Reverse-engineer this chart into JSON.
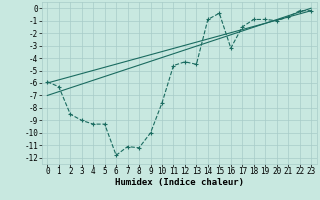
{
  "xlabel": "Humidex (Indice chaleur)",
  "bg_color": "#c8e8e0",
  "grid_color": "#a8ccc8",
  "line_color": "#1a6b60",
  "xlim": [
    -0.5,
    23.5
  ],
  "ylim": [
    -12.5,
    0.5
  ],
  "xticks": [
    0,
    1,
    2,
    3,
    4,
    5,
    6,
    7,
    8,
    9,
    10,
    11,
    12,
    13,
    14,
    15,
    16,
    17,
    18,
    19,
    20,
    21,
    22,
    23
  ],
  "yticks": [
    0,
    -1,
    -2,
    -3,
    -4,
    -5,
    -6,
    -7,
    -8,
    -9,
    -10,
    -11,
    -12
  ],
  "line1_x": [
    0,
    1,
    2,
    3,
    4,
    5,
    6,
    7,
    8,
    9,
    10,
    11,
    12,
    13,
    14,
    15,
    16,
    17,
    18,
    19,
    20,
    21,
    22,
    23
  ],
  "line1_y": [
    -5.9,
    -6.3,
    -8.5,
    -9.0,
    -9.3,
    -9.3,
    -11.8,
    -11.1,
    -11.2,
    -10.0,
    -7.6,
    -4.6,
    -4.3,
    -4.5,
    -0.9,
    -0.4,
    -3.2,
    -1.5,
    -0.9,
    -0.9,
    -1.0,
    -0.7,
    -0.2,
    -0.2
  ],
  "line2_x": [
    0,
    23
  ],
  "line2_y": [
    -6.0,
    -0.2
  ],
  "line3_x": [
    0,
    23
  ],
  "line3_y": [
    -7.0,
    -0.0
  ],
  "fontsize_label": 6.5,
  "fontsize_tick": 5.5
}
